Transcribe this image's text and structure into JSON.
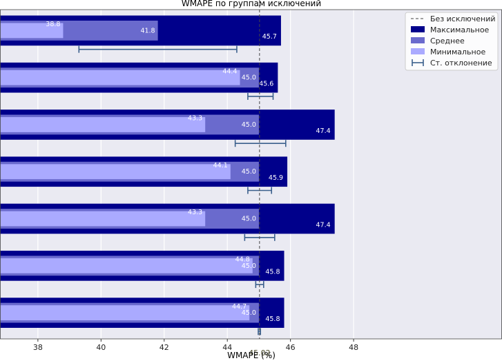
{
  "chart_data": {
    "type": "bar",
    "orientation": "horizontal",
    "title": "WMAPE по группам исключений",
    "xlabel": "WMAPE (%)",
    "ylabel": "",
    "xlim": [
      36.8,
      52.7
    ],
    "x_ticks": [
      38,
      40,
      42,
      44,
      46,
      48
    ],
    "grid": true,
    "legend_position": "top-right",
    "colors": {
      "max": "#00008b",
      "mean": "#6a6acd",
      "min": "#aaaaff",
      "error": "#3a5f8c",
      "reference": "#444444",
      "plot_bg": "#eaeaf2"
    },
    "legend": [
      {
        "key": "reference",
        "label": "Без исключений"
      },
      {
        "key": "max",
        "label": "Максимальное"
      },
      {
        "key": "mean",
        "label": "Среднее"
      },
      {
        "key": "min",
        "label": "Минимальное"
      },
      {
        "key": "error",
        "label": "Ст. отклонение"
      }
    ],
    "reference_line": {
      "value": 45.02,
      "label": "45.02"
    },
    "groups": [
      {
        "max": 45.7,
        "mean": 41.8,
        "min": 38.8,
        "err_low": 39.3,
        "err_high": 44.3
      },
      {
        "max": 45.6,
        "mean": 45.0,
        "min": 44.4,
        "err_low": 44.65,
        "err_high": 45.45
      },
      {
        "max": 47.4,
        "mean": 45.0,
        "min": 43.3,
        "err_low": 44.25,
        "err_high": 45.85
      },
      {
        "max": 45.9,
        "mean": 45.0,
        "min": 44.1,
        "err_low": 44.65,
        "err_high": 45.4
      },
      {
        "max": 47.4,
        "mean": 45.0,
        "min": 43.3,
        "err_low": 44.55,
        "err_high": 45.5
      },
      {
        "max": 45.8,
        "mean": 45.0,
        "min": 44.8,
        "err_low": 44.9,
        "err_high": 45.15
      },
      {
        "max": 45.8,
        "mean": 45.0,
        "min": 44.7,
        "err_low": 44.98,
        "err_high": 45.05
      }
    ]
  }
}
